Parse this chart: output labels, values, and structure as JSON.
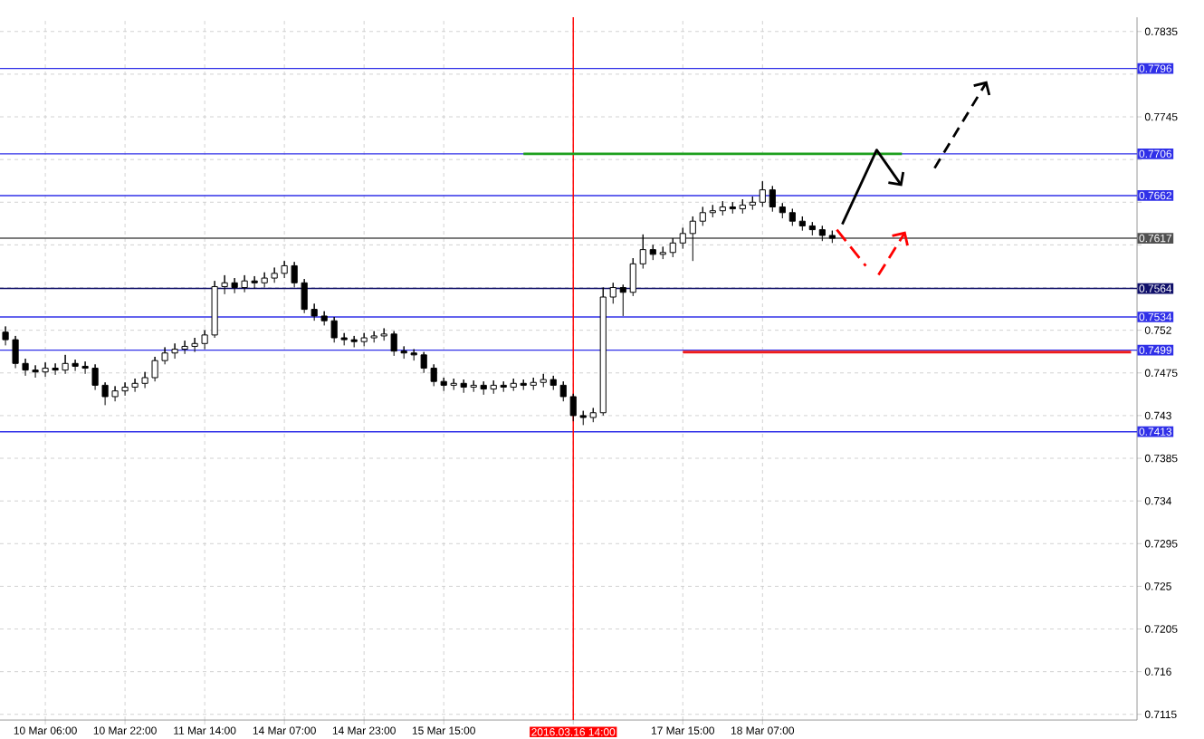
{
  "chart_data": {
    "type": "candlestick",
    "categories": [
      null,
      null,
      null,
      null,
      "10 Mar 06:00",
      null,
      null,
      null,
      null,
      null,
      null,
      null,
      "10 Mar 22:00",
      null,
      null,
      null,
      null,
      null,
      null,
      null,
      "11 Mar 14:00",
      null,
      null,
      null,
      null,
      null,
      null,
      null,
      "14 Mar 07:00",
      null,
      null,
      null,
      null,
      null,
      null,
      null,
      "14 Mar 23:00",
      null,
      null,
      null,
      null,
      null,
      null,
      null,
      "15 Mar 15:00",
      null,
      null,
      null,
      null,
      null,
      null,
      null,
      null,
      null,
      null,
      null,
      null,
      "2016.03.16 14:00",
      null,
      null,
      null,
      null,
      null,
      null,
      null,
      null,
      null,
      null,
      "17 Mar 15:00",
      null,
      null,
      null,
      null,
      null,
      null,
      null,
      "18 Mar 07:00",
      null,
      null,
      null,
      null,
      null,
      null,
      null,
      null,
      null,
      null,
      null,
      null,
      null,
      null,
      null,
      null,
      null,
      null,
      null,
      null,
      null,
      null,
      null,
      null,
      null,
      null,
      null,
      null,
      null,
      null,
      null,
      null,
      null,
      null,
      null,
      null,
      null
    ],
    "ohlc": [
      [
        0.7518,
        0.7524,
        0.7504,
        0.751
      ],
      [
        0.751,
        0.7514,
        0.748,
        0.7485
      ],
      [
        0.7485,
        0.749,
        0.7472,
        0.7478
      ],
      [
        0.7478,
        0.7483,
        0.747,
        0.7476
      ],
      [
        0.7476,
        0.7486,
        0.7471,
        0.748
      ],
      [
        0.748,
        0.7485,
        0.7473,
        0.7478
      ],
      [
        0.7478,
        0.7494,
        0.7474,
        0.7485
      ],
      [
        0.7485,
        0.7489,
        0.7477,
        0.7482
      ],
      [
        0.7482,
        0.7487,
        0.7474,
        0.748
      ],
      [
        0.748,
        0.7484,
        0.7457,
        0.7462
      ],
      [
        0.7462,
        0.7465,
        0.7441,
        0.745
      ],
      [
        0.745,
        0.7461,
        0.7445,
        0.7456
      ],
      [
        0.7456,
        0.7465,
        0.7451,
        0.746
      ],
      [
        0.746,
        0.7469,
        0.7455,
        0.7464
      ],
      [
        0.7464,
        0.7476,
        0.7459,
        0.747
      ],
      [
        0.747,
        0.7492,
        0.7466,
        0.7488
      ],
      [
        0.7488,
        0.7502,
        0.7484,
        0.7496
      ],
      [
        0.7496,
        0.7506,
        0.749,
        0.75
      ],
      [
        0.75,
        0.7509,
        0.7495,
        0.7503
      ],
      [
        0.7503,
        0.7512,
        0.7497,
        0.7506
      ],
      [
        0.7506,
        0.752,
        0.75,
        0.7515
      ],
      [
        0.7515,
        0.7572,
        0.7512,
        0.7566
      ],
      [
        0.7566,
        0.7578,
        0.7558,
        0.757
      ],
      [
        0.757,
        0.7575,
        0.7559,
        0.7565
      ],
      [
        0.7565,
        0.7578,
        0.756,
        0.7572
      ],
      [
        0.7572,
        0.7577,
        0.7564,
        0.757
      ],
      [
        0.757,
        0.7581,
        0.7565,
        0.7575
      ],
      [
        0.7575,
        0.7586,
        0.757,
        0.758
      ],
      [
        0.758,
        0.7593,
        0.7575,
        0.7588
      ],
      [
        0.7588,
        0.7592,
        0.7565,
        0.757
      ],
      [
        0.757,
        0.7574,
        0.7538,
        0.7542
      ],
      [
        0.7542,
        0.7548,
        0.753,
        0.7535
      ],
      [
        0.7535,
        0.754,
        0.7525,
        0.753
      ],
      [
        0.753,
        0.7534,
        0.7507,
        0.7512
      ],
      [
        0.7512,
        0.7517,
        0.7504,
        0.751
      ],
      [
        0.751,
        0.7514,
        0.7502,
        0.7508
      ],
      [
        0.7508,
        0.7517,
        0.7503,
        0.7512
      ],
      [
        0.7512,
        0.7519,
        0.7507,
        0.7514
      ],
      [
        0.7514,
        0.7522,
        0.7509,
        0.7516
      ],
      [
        0.7516,
        0.7519,
        0.7493,
        0.7498
      ],
      [
        0.7498,
        0.7503,
        0.749,
        0.7496
      ],
      [
        0.7496,
        0.75,
        0.7488,
        0.7494
      ],
      [
        0.7494,
        0.7497,
        0.7475,
        0.748
      ],
      [
        0.748,
        0.7484,
        0.7461,
        0.7466
      ],
      [
        0.7466,
        0.747,
        0.7456,
        0.7462
      ],
      [
        0.7462,
        0.7469,
        0.7457,
        0.7464
      ],
      [
        0.7464,
        0.7468,
        0.7454,
        0.746
      ],
      [
        0.746,
        0.7467,
        0.7455,
        0.7462
      ],
      [
        0.7462,
        0.7466,
        0.7452,
        0.7458
      ],
      [
        0.7458,
        0.7467,
        0.7453,
        0.7462
      ],
      [
        0.7462,
        0.7466,
        0.7455,
        0.746
      ],
      [
        0.746,
        0.7469,
        0.7456,
        0.7464
      ],
      [
        0.7464,
        0.7468,
        0.7457,
        0.7462
      ],
      [
        0.7462,
        0.747,
        0.7457,
        0.7465
      ],
      [
        0.7465,
        0.7474,
        0.746,
        0.7468
      ],
      [
        0.7468,
        0.7472,
        0.7457,
        0.7462
      ],
      [
        0.7462,
        0.7466,
        0.7445,
        0.745
      ],
      [
        0.745,
        0.7453,
        0.7424,
        0.743
      ],
      [
        0.743,
        0.7435,
        0.742,
        0.7428
      ],
      [
        0.7428,
        0.7438,
        0.7423,
        0.7433
      ],
      [
        0.7433,
        0.7565,
        0.743,
        0.7555
      ],
      [
        0.7555,
        0.757,
        0.7548,
        0.7565
      ],
      [
        0.7565,
        0.7568,
        0.7535,
        0.756
      ],
      [
        0.756,
        0.7596,
        0.7556,
        0.759
      ],
      [
        0.759,
        0.7621,
        0.7585,
        0.7605
      ],
      [
        0.7605,
        0.761,
        0.7594,
        0.76
      ],
      [
        0.76,
        0.7608,
        0.7595,
        0.7602
      ],
      [
        0.7602,
        0.7617,
        0.7597,
        0.7612
      ],
      [
        0.7612,
        0.7628,
        0.7606,
        0.7622
      ],
      [
        0.7622,
        0.764,
        0.7593,
        0.7635
      ],
      [
        0.7635,
        0.765,
        0.763,
        0.7644
      ],
      [
        0.7644,
        0.7652,
        0.7639,
        0.7646
      ],
      [
        0.7646,
        0.7656,
        0.7641,
        0.765
      ],
      [
        0.765,
        0.7655,
        0.7643,
        0.7648
      ],
      [
        0.7648,
        0.7658,
        0.7643,
        0.7652
      ],
      [
        0.7652,
        0.7661,
        0.7647,
        0.7655
      ],
      [
        0.7655,
        0.7677,
        0.765,
        0.7668
      ],
      [
        0.7668,
        0.7672,
        0.7645,
        0.765
      ],
      [
        0.765,
        0.7654,
        0.7638,
        0.7644
      ],
      [
        0.7644,
        0.7648,
        0.763,
        0.7635
      ],
      [
        0.7635,
        0.764,
        0.7625,
        0.763
      ],
      [
        0.763,
        0.7634,
        0.762,
        0.7626
      ],
      [
        0.7626,
        0.763,
        0.7614,
        0.762
      ],
      [
        0.762,
        0.7625,
        0.7612,
        0.7617
      ],
      null,
      null,
      null,
      null,
      null,
      null,
      null,
      null,
      null,
      null,
      null,
      null,
      null,
      null,
      null,
      null,
      null,
      null,
      null,
      null,
      null,
      null,
      null,
      null,
      null,
      null,
      null,
      null,
      null,
      null
    ],
    "series": [
      {
        "type": "line",
        "color": "#1ea01e",
        "values": [
          null,
          null,
          null,
          null,
          null,
          null,
          null,
          null,
          null,
          null,
          null,
          null,
          null,
          null,
          null,
          null,
          null,
          null,
          null,
          null,
          null,
          null,
          null,
          null,
          null,
          null,
          null,
          null,
          null,
          null,
          null,
          null,
          null,
          null,
          null,
          null,
          null,
          null,
          null,
          null,
          null,
          null,
          null,
          null,
          null,
          null,
          null,
          null,
          null,
          null,
          null,
          null,
          0.7706,
          0.7706,
          0.7706,
          0.7706,
          0.7706,
          0.7706,
          0.7706,
          0.7706,
          0.7706,
          0.7706,
          0.7706,
          0.7706,
          0.7706,
          0.7706,
          0.7706,
          0.7706,
          0.7706,
          0.7706,
          0.7706,
          0.7706,
          0.7706,
          0.7706,
          0.7706,
          0.7706,
          0.7706,
          0.7706,
          0.7706,
          0.7706,
          0.7706,
          0.7706,
          0.7706,
          0.7706,
          0.7706,
          0.7706,
          0.7706,
          0.7706,
          0.7706,
          0.7706,
          0.7706,
          null,
          null,
          null,
          null,
          null,
          null,
          null,
          null,
          null,
          null,
          null,
          null,
          null,
          null,
          null,
          null,
          null,
          null,
          null,
          null,
          null,
          null,
          null
        ]
      },
      {
        "type": "line",
        "color": "#ee1c1c",
        "values": [
          null,
          null,
          null,
          null,
          null,
          null,
          null,
          null,
          null,
          null,
          null,
          null,
          null,
          null,
          null,
          null,
          null,
          null,
          null,
          null,
          null,
          null,
          null,
          null,
          null,
          null,
          null,
          null,
          null,
          null,
          null,
          null,
          null,
          null,
          null,
          null,
          null,
          null,
          null,
          null,
          null,
          null,
          null,
          null,
          null,
          null,
          null,
          null,
          null,
          null,
          null,
          null,
          null,
          null,
          null,
          null,
          null,
          null,
          null,
          null,
          null,
          null,
          null,
          null,
          null,
          null,
          null,
          null,
          0.7497,
          0.7497,
          0.7497,
          0.7497,
          0.7497,
          0.7497,
          0.7497,
          0.7497,
          0.7497,
          0.7497,
          0.7497,
          0.7497,
          0.7497,
          0.7497,
          0.7497,
          0.7497,
          0.7497,
          0.7497,
          0.7497,
          0.7497,
          0.7497,
          0.7497,
          0.7497,
          0.7497,
          0.7497,
          0.7497,
          0.7497,
          0.7497,
          0.7497,
          0.7497,
          0.7497,
          0.7497,
          0.7497,
          0.7497,
          0.7497,
          0.7497,
          0.7497,
          0.7497,
          0.7497,
          0.7497,
          0.7497,
          0.7497,
          0.7497,
          0.7497,
          0.7497,
          0.7497
        ]
      }
    ],
    "ylim": [
      0.7109,
      0.785
    ],
    "yticks": [
      0.7835,
      {
        "value": 0.779,
        "label": null
      },
      0.7745,
      {
        "value": 0.77,
        "label": null
      },
      {
        "value": 0.7655,
        "label": null
      },
      {
        "value": 0.761,
        "label": null
      },
      {
        "value": 0.7565,
        "label": null
      },
      0.752,
      0.7475,
      0.743,
      0.7385,
      0.734,
      0.7295,
      0.725,
      0.7205,
      0.716,
      0.7115
    ],
    "ref_lines": [
      {
        "axis": "y",
        "value": 0.7796,
        "label": "0.7796",
        "color": "#3030e8"
      },
      {
        "axis": "y",
        "value": 0.7706,
        "label": "0.7706",
        "color": "#3030e8"
      },
      {
        "axis": "y",
        "value": 0.7662,
        "label": "0.7662",
        "color": "#3030e8"
      },
      {
        "axis": "y",
        "value": 0.7617,
        "label": "0.7617",
        "color": "#505050"
      },
      {
        "axis": "y",
        "value": 0.7564,
        "label": "0.7564",
        "color": "#10106a"
      },
      {
        "axis": "y",
        "value": 0.7534,
        "label": "0.7534",
        "color": "#3030e8"
      },
      {
        "axis": "y",
        "value": 0.7499,
        "label": "0.7499",
        "color": "#3030e8"
      },
      {
        "axis": "y",
        "value": 0.7413,
        "label": "0.7413",
        "color": "#3030e8"
      },
      {
        "axis": "x",
        "value": "2016.03.16 14:00",
        "color": "#ff0000"
      }
    ],
    "grid": true
  }
}
